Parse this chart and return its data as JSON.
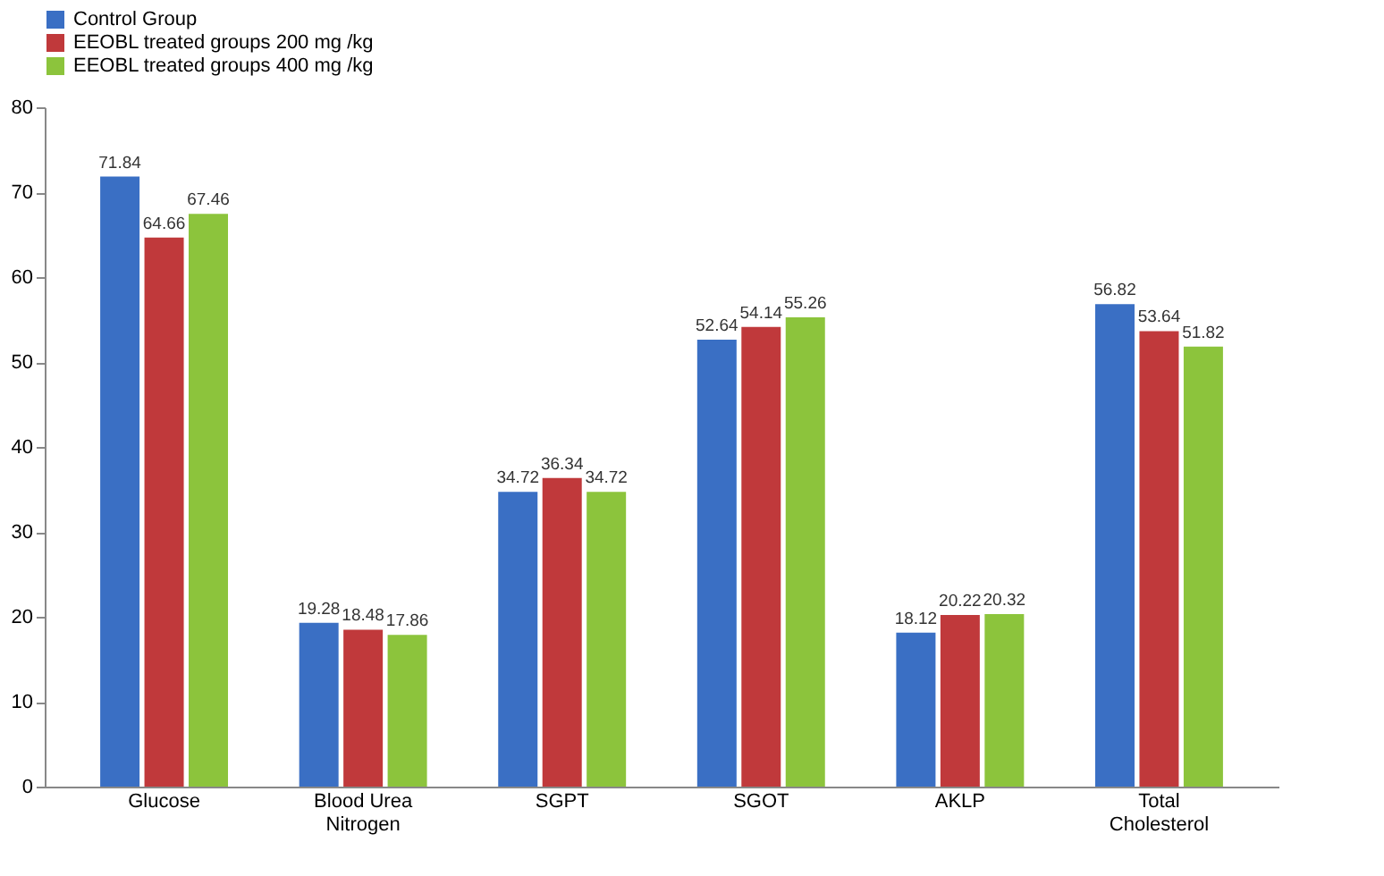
{
  "chart_data": {
    "type": "bar",
    "categories": [
      "Glucose",
      "Blood Urea Nitrogen",
      "SGPT",
      "SGOT",
      "AKLP",
      "Total Cholesterol"
    ],
    "series": [
      {
        "name": "Control  Group",
        "color": "#3a6fc4",
        "values": [
          71.84,
          19.28,
          34.72,
          52.64,
          18.12,
          56.82
        ]
      },
      {
        "name": "EEOBL treated groups 200 mg /kg",
        "color": "#c0393b",
        "values": [
          64.66,
          18.48,
          36.34,
          54.14,
          20.22,
          53.64
        ]
      },
      {
        "name": "EEOBL treated groups 400 mg /kg",
        "color": "#8cc43c",
        "values": [
          67.46,
          17.86,
          34.72,
          55.26,
          20.32,
          51.82
        ]
      }
    ],
    "ylim": [
      0,
      80
    ],
    "yticks": [
      0,
      10,
      20,
      30,
      40,
      50,
      60,
      70,
      80
    ],
    "grid": false,
    "legend": "top",
    "data_labels": true
  }
}
